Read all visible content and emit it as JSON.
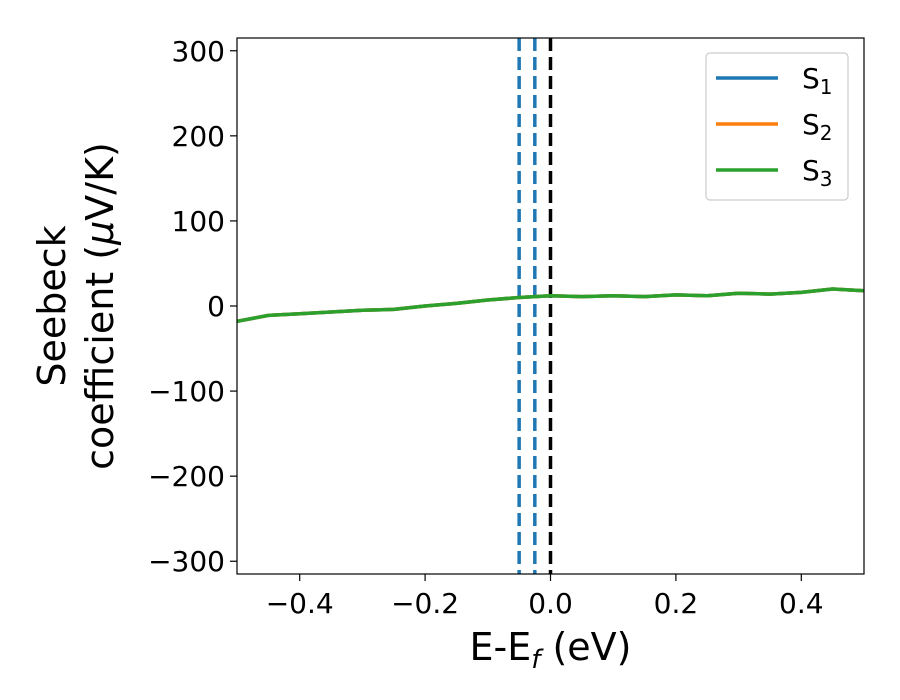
{
  "chart_data": {
    "type": "line",
    "title": "",
    "xlabel": "E-E",
    "xlabel_sub": "f",
    "xlabel_unit": " (eV)",
    "ylabel_line1": "Seebeck",
    "ylabel_line2": "coefficient  (",
    "ylabel_mu": "μ",
    "ylabel_unit": "V/K)",
    "xlim": [
      -0.5,
      0.5
    ],
    "ylim": [
      -315,
      315
    ],
    "xticks": [
      -0.4,
      -0.2,
      0.0,
      0.2,
      0.4
    ],
    "xtick_labels": [
      "−0.4",
      "−0.2",
      "0.0",
      "0.2",
      "0.4"
    ],
    "yticks": [
      -300,
      -200,
      -100,
      0,
      100,
      200,
      300
    ],
    "ytick_labels": [
      "−300",
      "−200",
      "−100",
      "0",
      "100",
      "200",
      "300"
    ],
    "grid": false,
    "legend_position": "top-right",
    "series": [
      {
        "name": "S",
        "sub": "1",
        "color": "#1f77b4",
        "x": [
          -0.5,
          -0.45,
          -0.4,
          -0.35,
          -0.3,
          -0.25,
          -0.2,
          -0.15,
          -0.1,
          -0.05,
          0.0,
          0.05,
          0.1,
          0.15,
          0.2,
          0.25,
          0.3,
          0.35,
          0.4,
          0.45,
          0.5
        ],
        "y": [
          -18,
          -11,
          -9,
          -7,
          -5,
          -4,
          0,
          3,
          7,
          10,
          12,
          11,
          12,
          11,
          13,
          12,
          15,
          14,
          16,
          20,
          18
        ]
      },
      {
        "name": "S",
        "sub": "2",
        "color": "#ff7f0e",
        "x": [
          -0.5,
          -0.45,
          -0.4,
          -0.35,
          -0.3,
          -0.25,
          -0.2,
          -0.15,
          -0.1,
          -0.05,
          0.0,
          0.05,
          0.1,
          0.15,
          0.2,
          0.25,
          0.3,
          0.35,
          0.4,
          0.45,
          0.5
        ],
        "y": [
          -18,
          -11,
          -9,
          -7,
          -5,
          -4,
          0,
          3,
          7,
          10,
          12,
          11,
          12,
          11,
          13,
          12,
          15,
          14,
          16,
          20,
          18
        ]
      },
      {
        "name": "S",
        "sub": "3",
        "color": "#2ca02c",
        "x": [
          -0.5,
          -0.45,
          -0.4,
          -0.35,
          -0.3,
          -0.25,
          -0.2,
          -0.15,
          -0.1,
          -0.05,
          0.0,
          0.05,
          0.1,
          0.15,
          0.2,
          0.25,
          0.3,
          0.35,
          0.4,
          0.45,
          0.5
        ],
        "y": [
          -18,
          -11,
          -9,
          -7,
          -5,
          -4,
          0,
          3,
          7,
          10,
          12,
          11,
          12,
          11,
          13,
          12,
          15,
          14,
          16,
          20,
          18
        ]
      }
    ],
    "vlines": [
      {
        "x": -0.05,
        "color": "#1f77b4",
        "style": "dashed"
      },
      {
        "x": -0.025,
        "color": "#1f77b4",
        "style": "dashed"
      },
      {
        "x": 0.0,
        "color": "#000000",
        "style": "dashed"
      }
    ]
  }
}
